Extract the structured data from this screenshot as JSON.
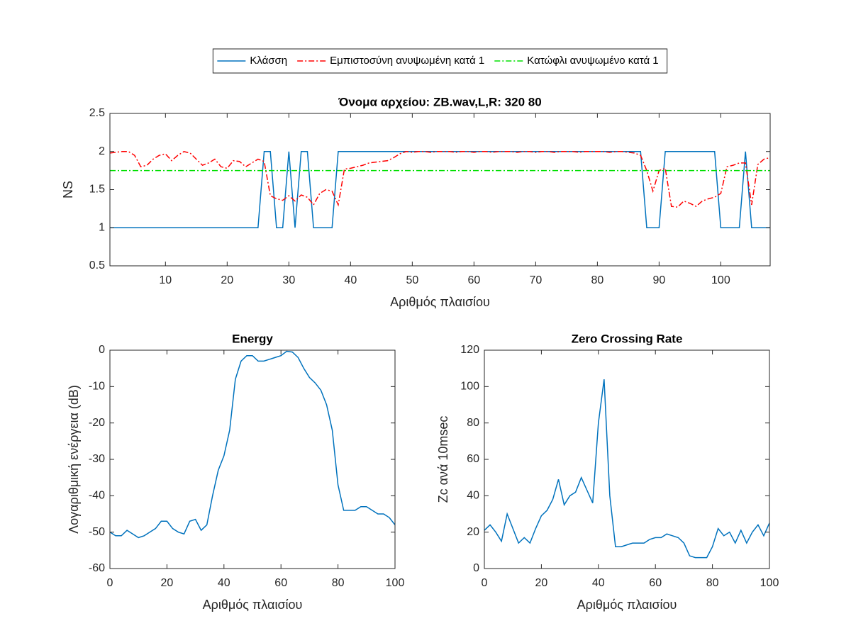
{
  "chart_data": [
    {
      "type": "line",
      "title": "Όνομα αρχείου: ZB.wav,L,R: 320 80",
      "xlabel": "Αριθμός πλαισίου",
      "ylabel": "NS",
      "legend": "north-outside",
      "x": [
        1,
        2,
        3,
        4,
        5,
        6,
        7,
        8,
        9,
        10,
        11,
        12,
        13,
        14,
        15,
        16,
        17,
        18,
        19,
        20,
        21,
        22,
        23,
        24,
        25,
        26,
        27,
        28,
        29,
        30,
        31,
        32,
        33,
        34,
        35,
        36,
        37,
        38,
        39,
        40,
        41,
        42,
        43,
        44,
        45,
        46,
        47,
        48,
        49,
        50,
        51,
        52,
        53,
        54,
        55,
        56,
        57,
        58,
        59,
        60,
        61,
        62,
        63,
        64,
        65,
        66,
        67,
        68,
        69,
        70,
        71,
        72,
        73,
        74,
        75,
        76,
        77,
        78,
        79,
        80,
        81,
        82,
        83,
        84,
        85,
        86,
        87,
        88,
        89,
        90,
        91,
        92,
        93,
        94,
        95,
        96,
        97,
        98,
        99,
        100,
        101,
        102,
        103,
        104,
        105,
        106,
        107,
        108
      ],
      "series": [
        {
          "name": "Κλάσση",
          "color": "#0072BD",
          "linestyle": "solid",
          "values": [
            1,
            1,
            1,
            1,
            1,
            1,
            1,
            1,
            1,
            1,
            1,
            1,
            1,
            1,
            1,
            1,
            1,
            1,
            1,
            1,
            1,
            1,
            1,
            1,
            1,
            2,
            2,
            1,
            1,
            2,
            1,
            2,
            2,
            1,
            1,
            1,
            1,
            2,
            2,
            2,
            2,
            2,
            2,
            2,
            2,
            2,
            2,
            2,
            2,
            2,
            2,
            2,
            2,
            2,
            2,
            2,
            2,
            2,
            2,
            2,
            2,
            2,
            2,
            2,
            2,
            2,
            2,
            2,
            2,
            2,
            2,
            2,
            2,
            2,
            2,
            2,
            2,
            2,
            2,
            2,
            2,
            2,
            2,
            2,
            2,
            2,
            2,
            1,
            1,
            1,
            2,
            2,
            2,
            2,
            2,
            2,
            2,
            2,
            2,
            1,
            1,
            1,
            1,
            2,
            1,
            1,
            1,
            1
          ]
        },
        {
          "name": "Εμπιστοσύνη ανυψωμένη κατά 1",
          "color": "#FF0000",
          "linestyle": "dash-dot",
          "values": [
            1.98,
            1.99,
            2,
            2,
            1.95,
            1.8,
            1.82,
            1.9,
            1.95,
            1.97,
            1.88,
            1.95,
            2,
            1.98,
            1.9,
            1.82,
            1.85,
            1.9,
            1.8,
            1.78,
            1.88,
            1.87,
            1.8,
            1.85,
            1.9,
            1.87,
            1.42,
            1.38,
            1.36,
            1.42,
            1.35,
            1.43,
            1.4,
            1.3,
            1.45,
            1.5,
            1.48,
            1.3,
            1.77,
            1.78,
            1.8,
            1.82,
            1.85,
            1.86,
            1.87,
            1.88,
            1.92,
            1.97,
            2,
            1.99,
            2,
            2,
            1.99,
            2,
            2,
            2,
            1.99,
            2,
            2,
            1.99,
            2,
            2,
            1.99,
            2,
            2,
            2,
            1.99,
            2,
            2,
            1.99,
            2,
            2,
            1.99,
            2,
            2,
            2,
            1.99,
            2,
            2,
            2,
            2,
            1.99,
            2,
            2,
            1.99,
            1.98,
            1.95,
            1.75,
            1.48,
            1.75,
            1.78,
            1.28,
            1.27,
            1.35,
            1.32,
            1.28,
            1.35,
            1.38,
            1.4,
            1.45,
            1.8,
            1.82,
            1.85,
            1.85,
            1.3,
            1.83,
            1.9,
            1.92
          ]
        },
        {
          "name": "Κατώφλι ανυψωμένο κατά 1",
          "color": "#00E000",
          "linestyle": "dash-dot",
          "values": [
            1.75,
            1.75,
            1.75,
            1.75,
            1.75,
            1.75,
            1.75,
            1.75,
            1.75,
            1.75,
            1.75,
            1.75,
            1.75,
            1.75,
            1.75,
            1.75,
            1.75,
            1.75,
            1.75,
            1.75,
            1.75,
            1.75,
            1.75,
            1.75,
            1.75,
            1.75,
            1.75,
            1.75,
            1.75,
            1.75,
            1.75,
            1.75,
            1.75,
            1.75,
            1.75,
            1.75,
            1.75,
            1.75,
            1.75,
            1.75,
            1.75,
            1.75,
            1.75,
            1.75,
            1.75,
            1.75,
            1.75,
            1.75,
            1.75,
            1.75,
            1.75,
            1.75,
            1.75,
            1.75,
            1.75,
            1.75,
            1.75,
            1.75,
            1.75,
            1.75,
            1.75,
            1.75,
            1.75,
            1.75,
            1.75,
            1.75,
            1.75,
            1.75,
            1.75,
            1.75,
            1.75,
            1.75,
            1.75,
            1.75,
            1.75,
            1.75,
            1.75,
            1.75,
            1.75,
            1.75,
            1.75,
            1.75,
            1.75,
            1.75,
            1.75,
            1.75,
            1.75,
            1.75,
            1.75,
            1.75,
            1.75,
            1.75,
            1.75,
            1.75,
            1.75,
            1.75,
            1.75,
            1.75,
            1.75,
            1.75,
            1.75,
            1.75,
            1.75,
            1.75,
            1.75,
            1.75,
            1.75,
            1.75
          ]
        }
      ],
      "xlim": [
        1,
        108
      ],
      "xticks": [
        10,
        20,
        30,
        40,
        50,
        60,
        70,
        80,
        90,
        100
      ],
      "ylim": [
        0.5,
        2.5
      ],
      "yticks": [
        0.5,
        1,
        1.5,
        2,
        2.5
      ],
      "grid": false
    },
    {
      "type": "line",
      "title": "Energy",
      "xlabel": "Αριθμός πλαισίου",
      "ylabel": "Λογαριθμική ενέργεια (dB)",
      "x": [
        0,
        2,
        4,
        6,
        8,
        10,
        12,
        14,
        16,
        18,
        20,
        22,
        24,
        26,
        28,
        30,
        32,
        34,
        36,
        38,
        40,
        42,
        44,
        46,
        48,
        50,
        52,
        54,
        56,
        58,
        60,
        62,
        64,
        66,
        68,
        70,
        72,
        74,
        76,
        78,
        80,
        82,
        84,
        86,
        88,
        90,
        92,
        94,
        96,
        98,
        100
      ],
      "series": [
        {
          "color": "#0072BD",
          "linestyle": "solid",
          "values": [
            -50,
            -51,
            -51,
            -49.5,
            -50.5,
            -51.5,
            -51,
            -50,
            -49,
            -47,
            -47,
            -49,
            -50,
            -50.5,
            -47,
            -46.5,
            -49.5,
            -48,
            -40,
            -33,
            -29,
            -22,
            -8,
            -3,
            -1.5,
            -1.5,
            -3,
            -3,
            -2.5,
            -2,
            -1.5,
            -0.3,
            -0.5,
            -2,
            -5,
            -7.5,
            -9,
            -11,
            -15,
            -22,
            -37,
            -44,
            -44,
            -44,
            -43,
            -43,
            -44,
            -45,
            -45,
            -46,
            -48
          ]
        }
      ],
      "xlim": [
        0,
        100
      ],
      "xticks": [
        0,
        20,
        40,
        60,
        80,
        100
      ],
      "ylim": [
        -60,
        0
      ],
      "yticks": [
        -60,
        -50,
        -40,
        -30,
        -20,
        -10,
        0
      ],
      "grid": false
    },
    {
      "type": "line",
      "title": "Zero Crossing Rate",
      "xlabel": "Αριθμός πλαισίου",
      "ylabel": "Zc ανά 10msec",
      "x": [
        0,
        2,
        4,
        6,
        8,
        10,
        12,
        14,
        16,
        18,
        20,
        22,
        24,
        26,
        28,
        30,
        32,
        34,
        36,
        38,
        40,
        42,
        44,
        46,
        48,
        50,
        52,
        54,
        56,
        58,
        60,
        62,
        64,
        66,
        68,
        70,
        72,
        74,
        76,
        78,
        80,
        82,
        84,
        86,
        88,
        90,
        92,
        94,
        96,
        98,
        100
      ],
      "series": [
        {
          "color": "#0072BD",
          "linestyle": "solid",
          "values": [
            21,
            24,
            20,
            15,
            30,
            22,
            14,
            17,
            14,
            22,
            29,
            32,
            38,
            49,
            35,
            40,
            42,
            50,
            43,
            36,
            80,
            104,
            40,
            12,
            12,
            13,
            14,
            14,
            14,
            16,
            17,
            17,
            19,
            18,
            17,
            14,
            7,
            6,
            6,
            6,
            12,
            22,
            18,
            20,
            14,
            21,
            14,
            20,
            24,
            18,
            25
          ]
        }
      ],
      "xlim": [
        0,
        100
      ],
      "xticks": [
        0,
        20,
        40,
        60,
        80,
        100
      ],
      "ylim": [
        0,
        120
      ],
      "yticks": [
        0,
        20,
        40,
        60,
        80,
        100,
        120
      ],
      "grid": false
    }
  ]
}
